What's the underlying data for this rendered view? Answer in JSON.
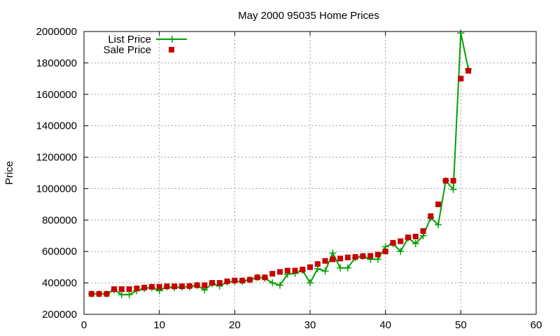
{
  "chart_data": {
    "type": "line",
    "title": "May 2000 95035 Home Prices",
    "xlabel": "",
    "ylabel": "Price",
    "xlim": [
      0,
      60
    ],
    "ylim": [
      200000,
      2000000
    ],
    "x_ticks": [
      0,
      10,
      20,
      30,
      40,
      50,
      60
    ],
    "y_ticks": [
      200000,
      400000,
      600000,
      800000,
      1000000,
      1200000,
      1400000,
      1600000,
      1800000,
      2000000
    ],
    "x_tick_labels": [
      "0",
      "10",
      "20",
      "30",
      "40",
      "50",
      "60"
    ],
    "y_tick_labels": [
      "200000",
      "400000",
      "600000",
      "800000",
      "1000000",
      "1200000",
      "1400000",
      "1600000",
      "1800000",
      "2000000"
    ],
    "grid": true,
    "legend_position": "top-left",
    "series": [
      {
        "name": "List Price",
        "style": "line-with-plus-markers",
        "color": "#00a000",
        "x": [
          1,
          2,
          3,
          4,
          5,
          6,
          7,
          8,
          9,
          10,
          11,
          12,
          13,
          14,
          15,
          16,
          17,
          18,
          19,
          20,
          21,
          22,
          23,
          24,
          25,
          26,
          27,
          28,
          29,
          30,
          31,
          32,
          33,
          34,
          35,
          36,
          37,
          38,
          39,
          40,
          41,
          42,
          43,
          44,
          45,
          46,
          47,
          48,
          49,
          50,
          51
        ],
        "y": [
          330000,
          330000,
          330000,
          355000,
          325000,
          325000,
          350000,
          365000,
          370000,
          350000,
          375000,
          370000,
          375000,
          375000,
          385000,
          355000,
          395000,
          380000,
          405000,
          410000,
          410000,
          420000,
          435000,
          430000,
          400000,
          385000,
          455000,
          460000,
          480000,
          400000,
          490000,
          475000,
          590000,
          495000,
          495000,
          560000,
          570000,
          550000,
          550000,
          630000,
          650000,
          600000,
          685000,
          650000,
          700000,
          815000,
          770000,
          1050000,
          995000,
          1990000,
          1760000
        ]
      },
      {
        "name": "Sale Price",
        "style": "square-markers",
        "color": "#c80000",
        "x": [
          1,
          2,
          3,
          4,
          5,
          6,
          7,
          8,
          9,
          10,
          11,
          12,
          13,
          14,
          15,
          16,
          17,
          18,
          19,
          20,
          21,
          22,
          23,
          24,
          25,
          26,
          27,
          28,
          29,
          30,
          31,
          32,
          33,
          34,
          35,
          36,
          37,
          38,
          39,
          40,
          41,
          42,
          43,
          44,
          45,
          46,
          47,
          48,
          49,
          50,
          51
        ],
        "y": [
          330000,
          330000,
          330000,
          360000,
          360000,
          360000,
          365000,
          370000,
          375000,
          375000,
          378000,
          378000,
          378000,
          380000,
          385000,
          385000,
          400000,
          400000,
          410000,
          415000,
          415000,
          420000,
          435000,
          435000,
          458000,
          470000,
          478000,
          478000,
          485000,
          500000,
          520000,
          540000,
          550000,
          555000,
          562000,
          565000,
          570000,
          572000,
          580000,
          600000,
          655000,
          665000,
          690000,
          695000,
          730000,
          825000,
          900000,
          1050000,
          1050000,
          1700000,
          1750000
        ]
      }
    ]
  }
}
